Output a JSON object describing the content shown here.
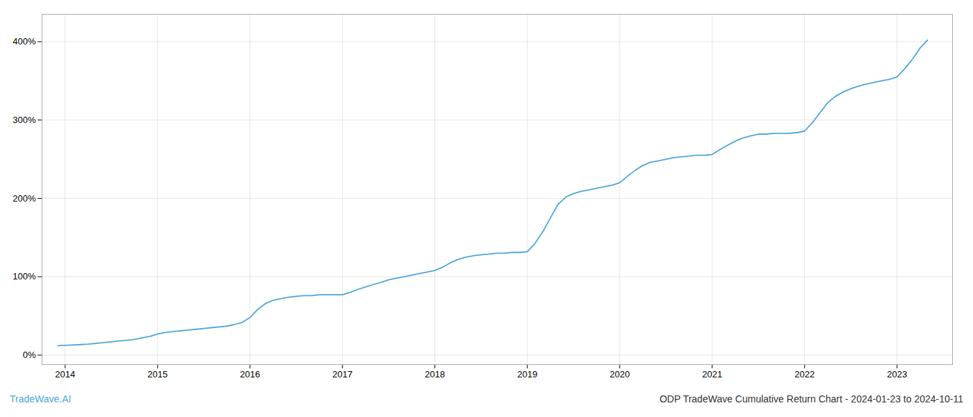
{
  "chart_data": {
    "type": "line",
    "title": "ODP TradeWave Cumulative Return Chart - 2024-01-23 to 2024-10-11",
    "annotations": [
      "TradeWave.AI"
    ],
    "color": "#4da6d8",
    "grid": true,
    "xlim": [
      2013.75,
      2023.6
    ],
    "ylim": [
      -0.12,
      4.35
    ],
    "xticks": [
      2014,
      2015,
      2016,
      2017,
      2018,
      2019,
      2020,
      2021,
      2022,
      2023
    ],
    "yticks": [
      {
        "value": 0.0,
        "label": "0%"
      },
      {
        "value": 1.0,
        "label": "100%"
      },
      {
        "value": 2.0,
        "label": "200%"
      },
      {
        "value": 3.0,
        "label": "300%"
      },
      {
        "value": 4.0,
        "label": "400%"
      }
    ],
    "x": [
      2013.92,
      2014.0,
      2014.08,
      2014.17,
      2014.25,
      2014.33,
      2014.42,
      2014.5,
      2014.58,
      2014.67,
      2014.75,
      2014.83,
      2014.92,
      2015.0,
      2015.08,
      2015.17,
      2015.25,
      2015.33,
      2015.42,
      2015.5,
      2015.58,
      2015.67,
      2015.75,
      2015.83,
      2015.92,
      2016.0,
      2016.08,
      2016.17,
      2016.25,
      2016.33,
      2016.42,
      2016.5,
      2016.58,
      2016.67,
      2016.75,
      2016.83,
      2016.92,
      2017.0,
      2017.08,
      2017.17,
      2017.25,
      2017.33,
      2017.42,
      2017.5,
      2017.58,
      2017.67,
      2017.75,
      2017.83,
      2017.92,
      2018.0,
      2018.08,
      2018.17,
      2018.25,
      2018.33,
      2018.42,
      2018.5,
      2018.58,
      2018.67,
      2018.75,
      2018.83,
      2018.92,
      2019.0,
      2019.08,
      2019.17,
      2019.25,
      2019.33,
      2019.42,
      2019.5,
      2019.58,
      2019.67,
      2019.75,
      2019.83,
      2019.92,
      2020.0,
      2020.08,
      2020.17,
      2020.25,
      2020.33,
      2020.42,
      2020.5,
      2020.58,
      2020.67,
      2020.75,
      2020.83,
      2020.92,
      2021.0,
      2021.08,
      2021.17,
      2021.25,
      2021.33,
      2021.42,
      2021.5,
      2021.58,
      2021.67,
      2021.75,
      2021.83,
      2021.92,
      2022.0,
      2022.08,
      2022.17,
      2022.25,
      2022.33,
      2022.42,
      2022.5,
      2022.58,
      2022.67,
      2022.75,
      2022.83,
      2022.92,
      2023.0,
      2023.08,
      2023.17,
      2023.25,
      2023.33
    ],
    "values": [
      0.12,
      0.125,
      0.13,
      0.135,
      0.14,
      0.15,
      0.16,
      0.17,
      0.18,
      0.19,
      0.2,
      0.22,
      0.24,
      0.27,
      0.29,
      0.3,
      0.31,
      0.32,
      0.33,
      0.34,
      0.35,
      0.36,
      0.37,
      0.39,
      0.42,
      0.48,
      0.58,
      0.66,
      0.7,
      0.72,
      0.74,
      0.75,
      0.76,
      0.76,
      0.77,
      0.77,
      0.77,
      0.77,
      0.8,
      0.84,
      0.87,
      0.9,
      0.93,
      0.96,
      0.98,
      1.0,
      1.02,
      1.04,
      1.06,
      1.08,
      1.12,
      1.18,
      1.22,
      1.25,
      1.27,
      1.28,
      1.29,
      1.3,
      1.3,
      1.31,
      1.31,
      1.32,
      1.42,
      1.58,
      1.75,
      1.92,
      2.02,
      2.06,
      2.09,
      2.11,
      2.13,
      2.15,
      2.17,
      2.2,
      2.28,
      2.36,
      2.42,
      2.46,
      2.48,
      2.5,
      2.52,
      2.53,
      2.54,
      2.55,
      2.55,
      2.56,
      2.62,
      2.68,
      2.73,
      2.77,
      2.8,
      2.82,
      2.82,
      2.83,
      2.83,
      2.83,
      2.84,
      2.86,
      2.96,
      3.1,
      3.22,
      3.3,
      3.36,
      3.4,
      3.43,
      3.46,
      3.48,
      3.5,
      3.52,
      3.55,
      3.65,
      3.78,
      3.92,
      4.02
    ]
  }
}
